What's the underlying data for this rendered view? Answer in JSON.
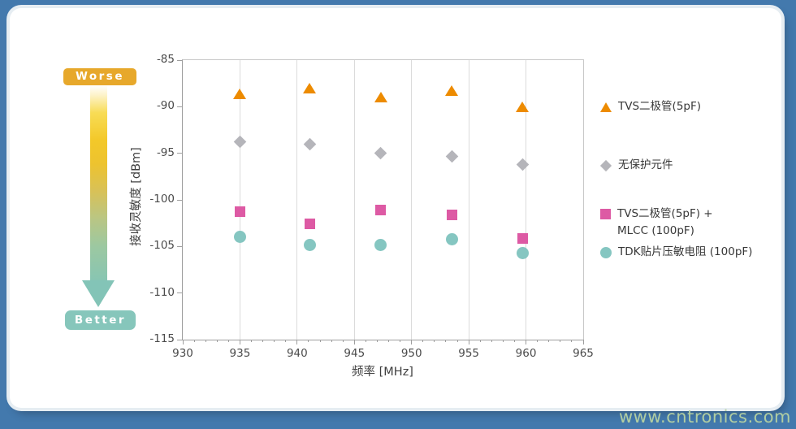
{
  "gradient_legend": {
    "worse_label": "Worse",
    "better_label": "Better",
    "worse_color": "#E7A82B",
    "better_color": "#86C6BB"
  },
  "watermark": "www.cntronics.com",
  "frame_color": "#4379AD",
  "legend": {
    "items": [
      {
        "marker": "triangle",
        "color": "#ED8B00",
        "lines": [
          "TVS二极管(5pF)"
        ]
      },
      {
        "marker": "diamond",
        "color": "#B5B5BA",
        "lines": [
          "无保护元件"
        ]
      },
      {
        "marker": "square",
        "color": "#DD5AA4",
        "lines": [
          "TVS二极管(5pF) +",
          "MLCC (100pF)"
        ]
      },
      {
        "marker": "circle",
        "color": "#85C6C1",
        "lines": [
          "TDK贴片压敏电阻 (100pF)"
        ]
      }
    ]
  },
  "chart_data": {
    "type": "scatter",
    "title": "",
    "xlabel": "频率 [MHz]",
    "ylabel": "接收灵敏度 [dBm]",
    "xlim": [
      930,
      965
    ],
    "ylim": [
      -115,
      -85
    ],
    "xticks": [
      930,
      935,
      940,
      945,
      950,
      955,
      960,
      965
    ],
    "yticks": [
      -85,
      -90,
      -95,
      -100,
      -105,
      -110,
      -115
    ],
    "minor_xtick_step": 1,
    "grid": "vertical-only",
    "legend_position": "right",
    "x": [
      935.0,
      941.1,
      947.3,
      953.5,
      959.7
    ],
    "series": [
      {
        "name": "TVS二极管(5pF)",
        "marker": "triangle",
        "color": "#ED8B00",
        "values": [
          -88.6,
          -88.0,
          -89.0,
          -88.3,
          -90.0
        ]
      },
      {
        "name": "无保护元件",
        "marker": "diamond",
        "color": "#B5B5BA",
        "values": [
          -93.8,
          -94.0,
          -95.0,
          -95.3,
          -96.2
        ]
      },
      {
        "name": "TVS二极管(5pF) + MLCC (100pF)",
        "marker": "square",
        "color": "#DD5AA4",
        "values": [
          -101.3,
          -102.6,
          -101.1,
          -101.6,
          -104.1
        ]
      },
      {
        "name": "TDK贴片压敏电阻 (100pF)",
        "marker": "circle",
        "color": "#85C6C1",
        "values": [
          -104.0,
          -104.8,
          -104.8,
          -104.2,
          -105.7
        ]
      }
    ]
  }
}
